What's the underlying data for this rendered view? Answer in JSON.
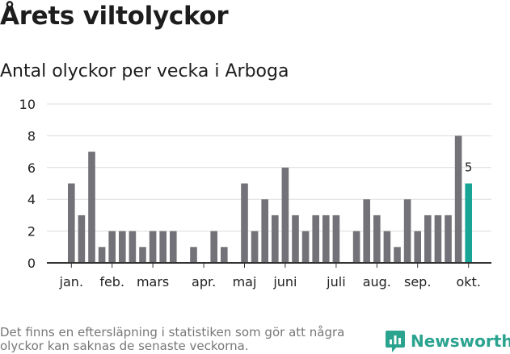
{
  "title": "Årets viltolyckor",
  "subtitle": "Antal olyckor per vecka i Arboga",
  "footnote": "Det finns en eftersläpning i statistiken som gör att några olyckor kan saknas de senaste veckorna.",
  "brand": {
    "name": "Newsworthy",
    "icon": "newsworthy-logo-icon"
  },
  "colors": {
    "bar": "#737278",
    "highlight": "#19a595",
    "grid": "#dcdcdc",
    "axis": "#333333",
    "text": "#222222"
  },
  "chart_data": {
    "type": "bar",
    "x": [
      1,
      2,
      3,
      4,
      5,
      6,
      7,
      8,
      9,
      10,
      11,
      12,
      13,
      14,
      15,
      16,
      17,
      18,
      19,
      20,
      21,
      22,
      23,
      24,
      25,
      26,
      27,
      28,
      29,
      30,
      31,
      32,
      33,
      34,
      35,
      36,
      37,
      38,
      39,
      40
    ],
    "values": [
      5,
      3,
      7,
      1,
      2,
      2,
      2,
      1,
      2,
      2,
      2,
      0,
      1,
      0,
      2,
      1,
      0,
      5,
      2,
      4,
      3,
      6,
      3,
      2,
      3,
      3,
      3,
      0,
      2,
      4,
      3,
      2,
      1,
      4,
      2,
      3,
      3,
      3,
      8,
      5
    ],
    "highlight_index": 39,
    "highlight_label": "5",
    "ylim": [
      0,
      10
    ],
    "yticks": [
      0,
      2,
      4,
      6,
      8,
      10
    ],
    "month_ticks": [
      {
        "label": "jan.",
        "x": 1
      },
      {
        "label": "feb.",
        "x": 5
      },
      {
        "label": "mars",
        "x": 9
      },
      {
        "label": "apr.",
        "x": 14
      },
      {
        "label": "maj",
        "x": 18
      },
      {
        "label": "juni",
        "x": 22
      },
      {
        "label": "juli",
        "x": 27
      },
      {
        "label": "aug.",
        "x": 31
      },
      {
        "label": "sep.",
        "x": 35
      },
      {
        "label": "okt.",
        "x": 40
      }
    ],
    "grid": true
  }
}
